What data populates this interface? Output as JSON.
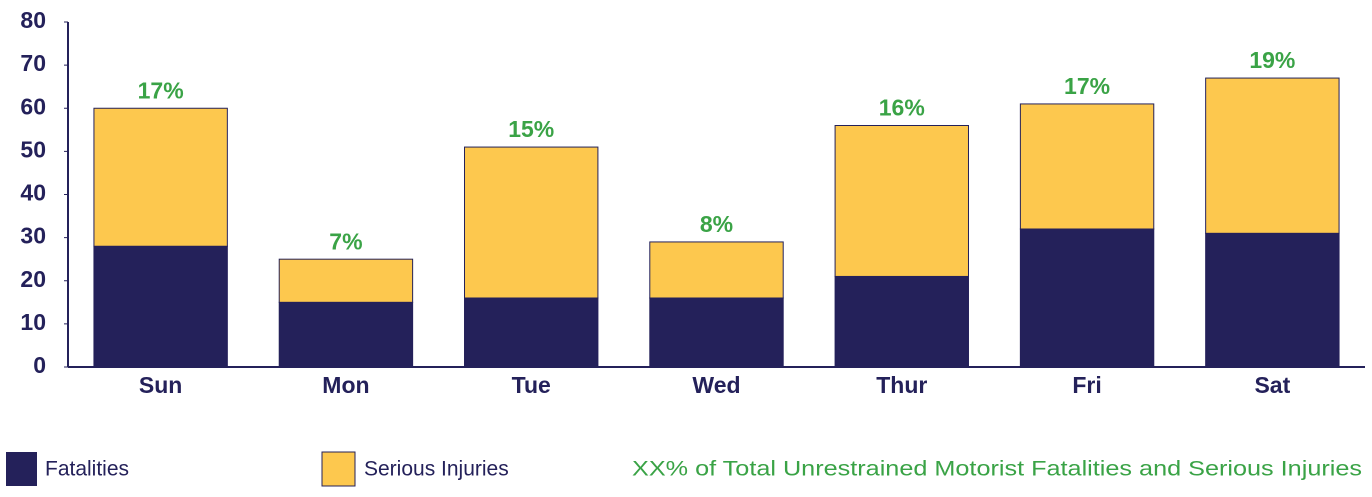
{
  "chart_data": {
    "type": "bar",
    "stacked": true,
    "categories": [
      "Sun",
      "Mon",
      "Tue",
      "Wed",
      "Thur",
      "Fri",
      "Sat"
    ],
    "series": [
      {
        "name": "Fatalities",
        "color": "#24215a",
        "values": [
          28,
          15,
          16,
          16,
          21,
          32,
          31
        ]
      },
      {
        "name": "Serious Injuries",
        "color": "#fdc84e",
        "values": [
          32,
          10,
          35,
          13,
          35,
          29,
          36
        ]
      }
    ],
    "labels": [
      "17%",
      "7%",
      "15%",
      "8%",
      "16%",
      "17%",
      "19%"
    ],
    "annotation": "XX% of Total Unrestrained Motorist Fatalities and Serious Injuries",
    "ylim": [
      0,
      80
    ],
    "yticks": [
      0,
      10,
      20,
      30,
      40,
      50,
      60,
      70,
      80
    ],
    "grid": false
  }
}
